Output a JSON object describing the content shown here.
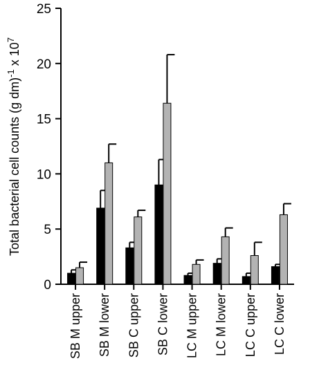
{
  "chart_data": {
    "type": "bar",
    "title": "",
    "xlabel": "",
    "ylabel": "Total bacterial cell counts (g dm)",
    "ylabel_sup1": "-1",
    "ylabel_mid": " x 10",
    "ylabel_sup2": "7",
    "ylim": [
      0,
      25
    ],
    "yticks": [
      "0",
      "5",
      "10",
      "15",
      "20",
      "25"
    ],
    "grid": false,
    "legend": "none",
    "categories": [
      "SB M upper",
      "SB M lower",
      "SB C upper",
      "SB C lower",
      "LC M upper",
      "LC M lower",
      "LC C upper",
      "LC C lower"
    ],
    "series": [
      {
        "color": "#000000",
        "values": [
          1.0,
          6.9,
          3.3,
          9.0,
          0.8,
          1.9,
          0.7,
          1.6
        ],
        "errors": [
          0.3,
          1.6,
          0.5,
          2.3,
          0.2,
          0.4,
          0.3,
          0.2
        ]
      },
      {
        "color": "#b3b3b3",
        "values": [
          1.5,
          11.0,
          6.1,
          16.4,
          1.8,
          4.3,
          2.6,
          6.3
        ],
        "errors": [
          0.5,
          1.7,
          0.6,
          4.4,
          0.4,
          0.8,
          1.2,
          1.0
        ]
      }
    ]
  }
}
